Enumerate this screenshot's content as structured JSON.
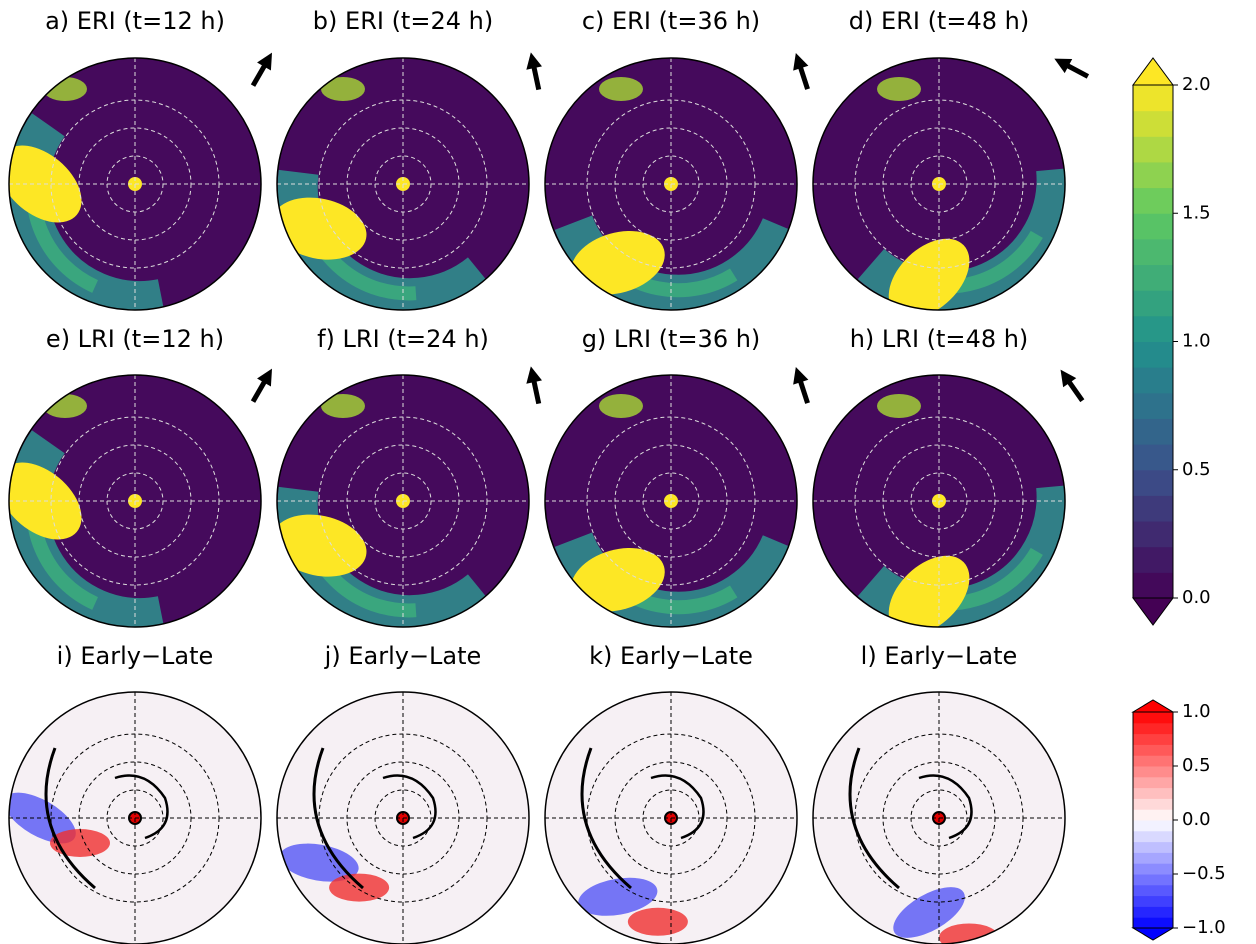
{
  "panels": [
    {
      "title": "a) ERI (t=12 h)"
    },
    {
      "title": "b) ERI (t=24 h)"
    },
    {
      "title": "c) ERI (t=36 h)"
    },
    {
      "title": "d) ERI (t=48 h)"
    },
    {
      "title": "e) LRI (t=12 h)"
    },
    {
      "title": "f) LRI (t=24 h)"
    },
    {
      "title": "g) LRI (t=36 h)"
    },
    {
      "title": "h) LRI (t=48 h)"
    },
    {
      "title": "i) Early−Late"
    },
    {
      "title": "j) Early−Late"
    },
    {
      "title": "k) Early−Late"
    },
    {
      "title": "l) Early−Late"
    }
  ],
  "colorbars": [
    {
      "colormap": "viridis",
      "ylim": [
        0,
        2
      ],
      "yticks": [
        {
          "value": 0,
          "label": "0.0"
        },
        {
          "value": 0.5,
          "label": "0.5"
        },
        {
          "value": 1,
          "label": "1.0"
        },
        {
          "value": 1.5,
          "label": "1.5"
        },
        {
          "value": 2,
          "label": "2.0"
        }
      ]
    },
    {
      "colormap": "bwr",
      "ylim": [
        -1,
        1
      ],
      "yticks": [
        {
          "value": -1,
          "label": "−1.0"
        },
        {
          "value": -0.5,
          "label": "−0.5"
        },
        {
          "value": 0,
          "label": "0.0"
        },
        {
          "value": 0.5,
          "label": "0.5"
        },
        {
          "value": 1,
          "label": "1.0"
        }
      ]
    }
  ]
}
